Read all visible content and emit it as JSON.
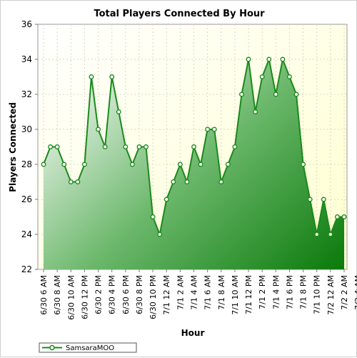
{
  "chart_data": {
    "type": "area",
    "title": "Total Players Connected By Hour",
    "xlabel": "Hour",
    "ylabel": "Players Connected",
    "ylim": [
      22,
      36
    ],
    "yticks": [
      22,
      24,
      26,
      28,
      30,
      32,
      34,
      36
    ],
    "grid": true,
    "legend_position": "bottom-left",
    "x_tick_labels": [
      "6/30 6 AM",
      "6/30 8 AM",
      "6/30 10 AM",
      "6/30 12 PM",
      "6/30 2 PM",
      "6/30 4 PM",
      "6/30 6 PM",
      "6/30 8 PM",
      "6/30 10 PM",
      "7/1 12 AM",
      "7/1 2 AM",
      "7/1 4 AM",
      "7/1 6 AM",
      "7/1 8 AM",
      "7/1 10 AM",
      "7/1 12 PM",
      "7/1 2 PM",
      "7/1 4 PM",
      "7/1 6 PM",
      "7/1 8 PM",
      "7/1 10 PM",
      "7/2 12 AM",
      "7/2 2 AM",
      "7/2 4 AM"
    ],
    "series": [
      {
        "name": "SamsaraMOO",
        "color": "#1a8a1a",
        "values": [
          28,
          29,
          29,
          28,
          27,
          27,
          28,
          33,
          30,
          29,
          33,
          31,
          29,
          28,
          29,
          29,
          25,
          24,
          26,
          27,
          28,
          27,
          29,
          28,
          30,
          30,
          27,
          28,
          29,
          32,
          34,
          31,
          33,
          34,
          32,
          34,
          33,
          32,
          28,
          26,
          24,
          26,
          24,
          25,
          25
        ]
      }
    ]
  }
}
